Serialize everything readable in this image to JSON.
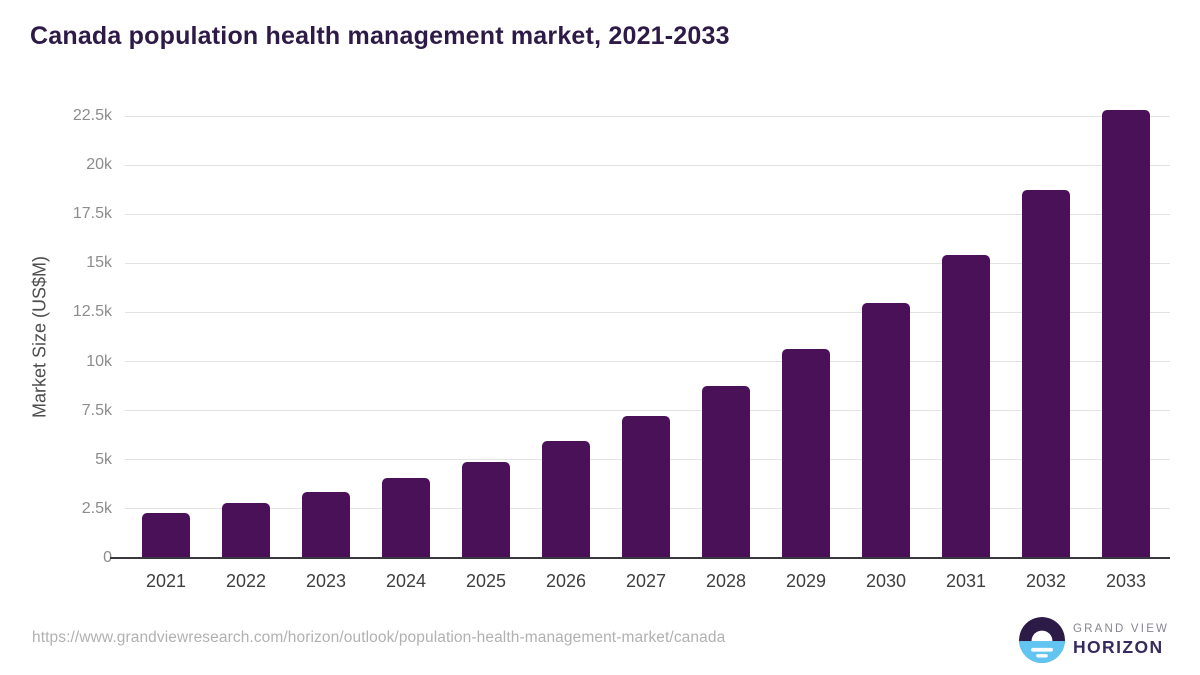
{
  "title": "Canada population health management market, 2021-2033",
  "source_url": "https://www.grandviewresearch.com/horizon/outlook/population-health-management-market/canada",
  "branding": {
    "logo": "grand-view-horizon-logo",
    "name_line1": "GRAND VIEW",
    "name_line2": "HORIZON"
  },
  "colors": {
    "bar": "#4a1158",
    "title": "#2e1a47",
    "gridline": "#e3e3e3",
    "axis_line": "#3a3740",
    "y_tick_label": "#8c8c8c",
    "x_tick_label": "#3f3f3f",
    "axis_title": "#4d4d4d",
    "source_url": "#b1b1b1",
    "brand_name": "#86858f",
    "brand_horizon": "#362a5e",
    "logo_dark": "#2d1b47",
    "logo_blue": "#62c4f0"
  },
  "chart_data": {
    "type": "bar",
    "title": "Canada population health management market, 2021-2033",
    "xlabel": "",
    "ylabel": "Market Size (US$M)",
    "unit": "US$M",
    "categories": [
      "2021",
      "2022",
      "2023",
      "2024",
      "2025",
      "2026",
      "2027",
      "2028",
      "2029",
      "2030",
      "2031",
      "2032",
      "2033"
    ],
    "values": [
      2300,
      2790,
      3370,
      4060,
      4900,
      5960,
      7240,
      8760,
      10660,
      12980,
      15440,
      18720,
      22790
    ],
    "ylim": [
      0,
      22500
    ],
    "yticks": [
      0,
      2500,
      5000,
      7500,
      10000,
      12500,
      15000,
      17500,
      20000,
      22500
    ],
    "ytick_labels": [
      "0",
      "2.5k",
      "5k",
      "7.5k",
      "10k",
      "12.5k",
      "15k",
      "17.5k",
      "20k",
      "22.5k"
    ],
    "grid": "horizontal",
    "legend_position": "none"
  }
}
